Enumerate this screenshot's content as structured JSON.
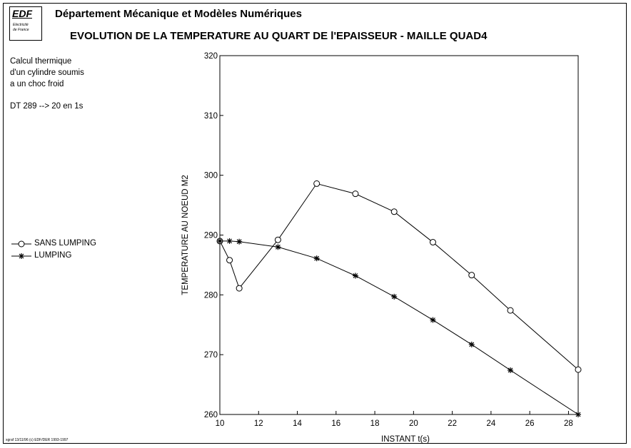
{
  "header": {
    "logo": {
      "main": "EDF",
      "line1": "Electricité",
      "line2": "de France"
    },
    "department": "Département Mécanique et Modèles Numériques",
    "title": "EVOLUTION DE LA TEMPERATURE AU QUART DE l'EPAISSEUR - MAILLE QUAD4"
  },
  "description": [
    "Calcul thermique",
    "d'un cylindre soumis",
    "a un choc froid",
    "DT 289 --> 20 en 1s"
  ],
  "footer": "xgraf 13/11/96 (c) EDF/DER 1993-1997",
  "colors": {
    "line": "#000000",
    "background": "#ffffff"
  },
  "chart_data": {
    "type": "line",
    "title": "",
    "xlabel": "INSTANT t(s)",
    "ylabel": "TEMPERATURE AU NOEUD M2",
    "xlim": [
      10,
      28.5
    ],
    "ylim": [
      260,
      320
    ],
    "xticks": [
      10,
      12,
      14,
      16,
      18,
      20,
      22,
      24,
      26,
      28
    ],
    "yticks": [
      260,
      270,
      280,
      290,
      300,
      310,
      320
    ],
    "grid": false,
    "legend_position": "left",
    "series": [
      {
        "name": "SANS LUMPING",
        "marker": "circle",
        "x": [
          10,
          10.5,
          11,
          13,
          15,
          17,
          19,
          21,
          23,
          25,
          28.5
        ],
        "y": [
          289,
          285.8,
          281.1,
          289.2,
          298.6,
          296.9,
          293.9,
          288.8,
          283.3,
          277.4,
          267.5
        ]
      },
      {
        "name": "LUMPING",
        "marker": "star",
        "x": [
          10,
          10.5,
          11,
          13,
          15,
          17,
          19,
          21,
          23,
          25,
          28.5
        ],
        "y": [
          289,
          289,
          288.9,
          288,
          286.1,
          283.2,
          279.7,
          275.8,
          271.7,
          267.4,
          260
        ]
      }
    ]
  }
}
